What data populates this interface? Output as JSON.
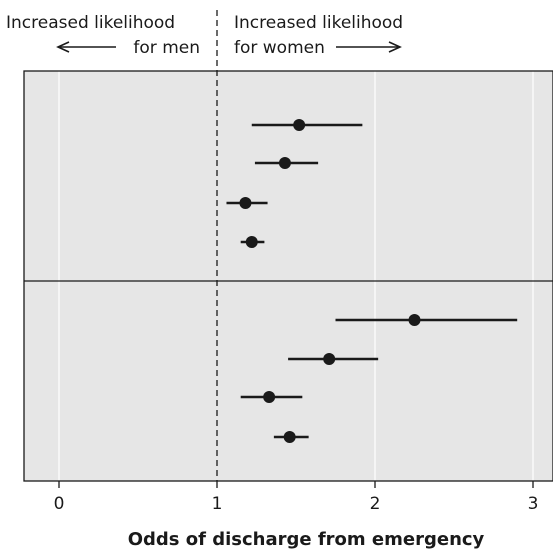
{
  "header": {
    "left_line1": "Increased likelihood",
    "left_line2": "for men",
    "right_line1": "Increased likelihood",
    "right_line2": "for women"
  },
  "chart_data": {
    "type": "scatter",
    "subtype": "forest-plot",
    "xlabel": "Odds of discharge from emergency",
    "xlim": [
      -0.22,
      3.05
    ],
    "xticks": [
      0,
      1,
      2,
      3
    ],
    "reference_line": 1,
    "grid": "vertical",
    "panels": [
      {
        "points": [
          {
            "estimate": 1.52,
            "lower": 1.22,
            "upper": 1.92
          },
          {
            "estimate": 1.43,
            "lower": 1.24,
            "upper": 1.64
          },
          {
            "estimate": 1.18,
            "lower": 1.06,
            "upper": 1.32
          },
          {
            "estimate": 1.22,
            "lower": 1.15,
            "upper": 1.3
          }
        ]
      },
      {
        "points": [
          {
            "estimate": 2.25,
            "lower": 1.75,
            "upper": 2.9
          },
          {
            "estimate": 1.71,
            "lower": 1.45,
            "upper": 2.02
          },
          {
            "estimate": 1.33,
            "lower": 1.15,
            "upper": 1.54
          },
          {
            "estimate": 1.46,
            "lower": 1.36,
            "upper": 1.58
          }
        ]
      }
    ],
    "colors": {
      "panel_bg": "#e6e6e6",
      "marker": "#1a1a1a",
      "grid": "#ffffff"
    }
  }
}
